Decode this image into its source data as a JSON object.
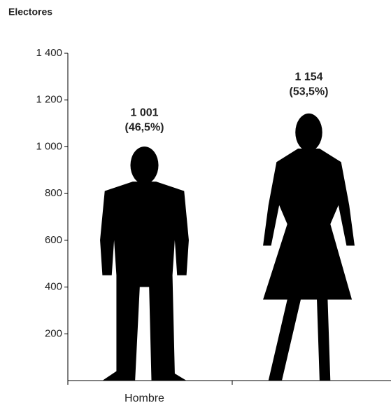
{
  "chart_data": {
    "type": "pictograph",
    "title": "Electores",
    "categories": [
      "Hombre",
      null
    ],
    "values": [
      1001,
      1154
    ],
    "value_labels": [
      "1 001",
      "1 154"
    ],
    "shares": [
      46.5,
      53.5
    ],
    "share_labels": [
      "(46,5%)",
      "(53,5%)"
    ],
    "color": "#000000",
    "ylim": [
      0,
      1400
    ],
    "yticks": [
      200,
      400,
      600,
      800,
      {
        "value": 1000,
        "label": "1 000"
      },
      {
        "value": 1200,
        "label": "1 200"
      },
      {
        "value": 1400,
        "label": "1 400"
      }
    ],
    "grid": false
  }
}
